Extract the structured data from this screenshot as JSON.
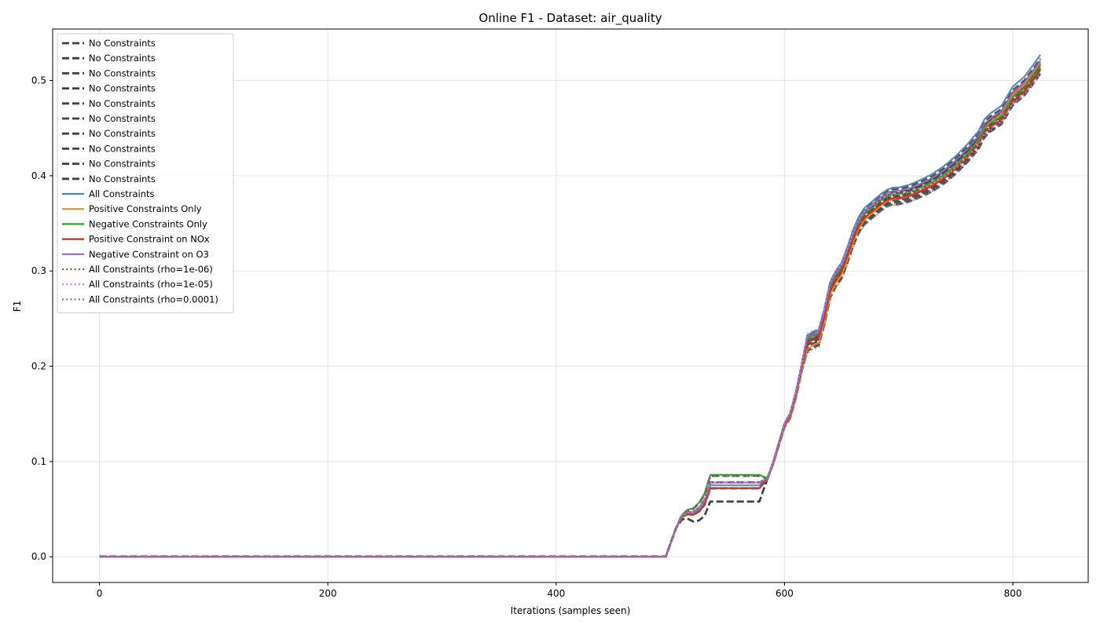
{
  "chart_data": {
    "type": "line",
    "title": "Online F1 - Dataset: air_quality",
    "xlabel": "Iterations (samples seen)",
    "ylabel": "F1",
    "xlim": [
      -41,
      866
    ],
    "ylim": [
      -0.027,
      0.554
    ],
    "xticks": [
      0,
      200,
      400,
      600,
      800
    ],
    "yticks": [
      0.0,
      0.1,
      0.2,
      0.3,
      0.4,
      0.5
    ],
    "xtick_labels": [
      "0",
      "200",
      "400",
      "600",
      "800"
    ],
    "ytick_labels": [
      "0.0",
      "0.1",
      "0.2",
      "0.3",
      "0.4",
      "0.5"
    ],
    "grid": true,
    "legend_position": "upper-left",
    "series": [
      {
        "name": "No Constraints",
        "color": "#404040",
        "style": "dashed",
        "offset_mid": 0.0,
        "offset_end": 0.0,
        "plateau": 0.058
      },
      {
        "name": "No Constraints",
        "color": "#404040",
        "style": "dashed",
        "offset_mid": 0.004,
        "offset_end": 0.002,
        "plateau": 0.072
      },
      {
        "name": "No Constraints",
        "color": "#404040",
        "style": "dashed",
        "offset_mid": -0.004,
        "offset_end": -0.004,
        "plateau": 0.078
      },
      {
        "name": "No Constraints",
        "color": "#404040",
        "style": "dashed",
        "offset_mid": 0.006,
        "offset_end": 0.004,
        "plateau": 0.085
      },
      {
        "name": "No Constraints",
        "color": "#404040",
        "style": "dashed",
        "offset_mid": -0.006,
        "offset_end": -0.006,
        "plateau": 0.072
      },
      {
        "name": "No Constraints",
        "color": "#404040",
        "style": "dashed",
        "offset_mid": 0.002,
        "offset_end": 0.006,
        "plateau": 0.078
      },
      {
        "name": "No Constraints",
        "color": "#404040",
        "style": "dashed",
        "offset_mid": -0.002,
        "offset_end": -0.002,
        "plateau": 0.085
      },
      {
        "name": "No Constraints",
        "color": "#404040",
        "style": "dashed",
        "offset_mid": 0.008,
        "offset_end": 0.008,
        "plateau": 0.072
      },
      {
        "name": "No Constraints",
        "color": "#404040",
        "style": "dashed",
        "offset_mid": -0.008,
        "offset_end": -0.008,
        "plateau": 0.078
      },
      {
        "name": "No Constraints",
        "color": "#404040",
        "style": "dashed",
        "offset_mid": 0.001,
        "offset_end": 0.001,
        "plateau": 0.058
      },
      {
        "name": "All Constraints",
        "color": "#4682b4",
        "style": "solid",
        "offset_mid": 0.008,
        "offset_end": 0.012,
        "plateau": 0.075
      },
      {
        "name": "Positive Constraints Only",
        "color": "#ff8c1a",
        "style": "solid",
        "offset_mid": -0.006,
        "offset_end": 0.004,
        "plateau": 0.072
      },
      {
        "name": "Negative Constraints Only",
        "color": "#33a02c",
        "style": "solid",
        "offset_mid": 0.004,
        "offset_end": 0.0,
        "plateau": 0.086
      },
      {
        "name": "Positive Constraint on NOx",
        "color": "#d62728",
        "style": "solid",
        "offset_mid": 0.0,
        "offset_end": -0.004,
        "plateau": 0.072
      },
      {
        "name": "Negative Constraint on O3",
        "color": "#9467bd",
        "style": "solid",
        "offset_mid": 0.006,
        "offset_end": 0.006,
        "plateau": 0.078
      },
      {
        "name": "All Constraints (rho=1e-06)",
        "color": "#8c564b",
        "style": "dotted",
        "offset_mid": 0.002,
        "offset_end": -0.002,
        "plateau": 0.072
      },
      {
        "name": "All Constraints (rho=1e-05)",
        "color": "#e377c2",
        "style": "dotted",
        "offset_mid": 0.01,
        "offset_end": -0.008,
        "plateau": 0.078
      },
      {
        "name": "All Constraints (rho=0.0001)",
        "color": "#7f7f7f",
        "style": "dotted",
        "offset_mid": -0.01,
        "offset_end": -0.006,
        "plateau": 0.085
      }
    ],
    "base_curve": {
      "x": [
        0,
        496,
        505,
        510,
        515,
        520,
        525,
        530,
        535,
        540,
        545,
        550,
        560,
        570,
        578,
        585,
        590,
        595,
        600,
        605,
        610,
        615,
        620,
        625,
        630,
        635,
        640,
        645,
        650,
        655,
        660,
        665,
        670,
        675,
        680,
        685,
        690,
        695,
        700,
        710,
        720,
        730,
        740,
        750,
        760,
        770,
        775,
        780,
        790,
        800,
        810,
        820,
        824
      ],
      "y": [
        0,
        0,
        0.03,
        0.042,
        0.046,
        0.046,
        0.05,
        0.058,
        0.068,
        0.074,
        0.076,
        0.076,
        0.076,
        0.076,
        0.076,
        0.082,
        0.098,
        0.118,
        0.138,
        0.148,
        0.17,
        0.198,
        0.224,
        0.228,
        0.23,
        0.252,
        0.28,
        0.292,
        0.3,
        0.316,
        0.334,
        0.348,
        0.357,
        0.362,
        0.367,
        0.372,
        0.376,
        0.378,
        0.378,
        0.381,
        0.386,
        0.392,
        0.4,
        0.41,
        0.422,
        0.436,
        0.448,
        0.454,
        0.462,
        0.482,
        0.492,
        0.508,
        0.515
      ]
    }
  }
}
